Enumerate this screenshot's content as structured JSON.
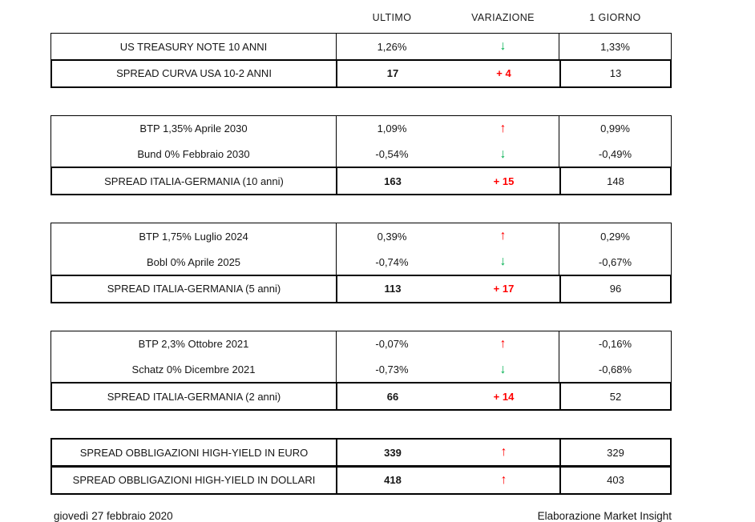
{
  "colors": {
    "red": "#ff0000",
    "green": "#00b050",
    "border": "#000000"
  },
  "icons": {
    "arrow_up": "↑",
    "arrow_down": "↓"
  },
  "chart_data": {
    "type": "table",
    "columns": [
      "ULTIMO",
      "VARIAZIONE",
      "1 GIORNO"
    ],
    "tables": [
      {
        "rows": [
          {
            "label": "US TREASURY NOTE 10 ANNI",
            "ultimo": "1,26%",
            "variazione": {
              "kind": "arrow",
              "dir": "down"
            },
            "giorno": "1,33%",
            "spread": false
          },
          {
            "label": "SPREAD CURVA USA 10-2 ANNI",
            "ultimo": "17",
            "variazione": {
              "kind": "text",
              "value": "+ 4"
            },
            "giorno": "13",
            "spread": true
          }
        ]
      },
      {
        "rows": [
          {
            "label": "BTP 1,35% Aprile 2030",
            "ultimo": "1,09%",
            "variazione": {
              "kind": "arrow",
              "dir": "up"
            },
            "giorno": "0,99%",
            "spread": false
          },
          {
            "label": "Bund 0% Febbraio 2030",
            "ultimo": "-0,54%",
            "variazione": {
              "kind": "arrow",
              "dir": "down"
            },
            "giorno": "-0,49%",
            "spread": false
          },
          {
            "label": "SPREAD ITALIA-GERMANIA (10 anni)",
            "ultimo": "163",
            "variazione": {
              "kind": "text",
              "value": "+ 15"
            },
            "giorno": "148",
            "spread": true
          }
        ]
      },
      {
        "rows": [
          {
            "label": "BTP 1,75% Luglio 2024",
            "ultimo": "0,39%",
            "variazione": {
              "kind": "arrow",
              "dir": "up"
            },
            "giorno": "0,29%",
            "spread": false
          },
          {
            "label": "Bobl 0% Aprile 2025",
            "ultimo": "-0,74%",
            "variazione": {
              "kind": "arrow",
              "dir": "down"
            },
            "giorno": "-0,67%",
            "spread": false
          },
          {
            "label": "SPREAD ITALIA-GERMANIA (5 anni)",
            "ultimo": "113",
            "variazione": {
              "kind": "text",
              "value": "+ 17"
            },
            "giorno": "96",
            "spread": true
          }
        ]
      },
      {
        "rows": [
          {
            "label": "BTP 2,3% Ottobre 2021",
            "ultimo": "-0,07%",
            "variazione": {
              "kind": "arrow",
              "dir": "up"
            },
            "giorno": "-0,16%",
            "spread": false
          },
          {
            "label": "Schatz 0% Dicembre 2021",
            "ultimo": "-0,73%",
            "variazione": {
              "kind": "arrow",
              "dir": "down"
            },
            "giorno": "-0,68%",
            "spread": false
          },
          {
            "label": "SPREAD ITALIA-GERMANIA (2 anni)",
            "ultimo": "66",
            "variazione": {
              "kind": "text",
              "value": "+ 14"
            },
            "giorno": "52",
            "spread": true
          }
        ]
      },
      {
        "rows": [
          {
            "label": "SPREAD OBBLIGAZIONI HIGH-YIELD IN EURO",
            "ultimo": "339",
            "variazione": {
              "kind": "arrow",
              "dir": "up"
            },
            "giorno": "329",
            "spread": true
          },
          {
            "label": "SPREAD OBBLIGAZIONI HIGH-YIELD IN DOLLARI",
            "ultimo": "418",
            "variazione": {
              "kind": "arrow",
              "dir": "up"
            },
            "giorno": "403",
            "spread": true
          }
        ]
      }
    ]
  },
  "footer": {
    "date": "giovedì 27 febbraio 2020",
    "credit": "Elaborazione Market Insight"
  }
}
